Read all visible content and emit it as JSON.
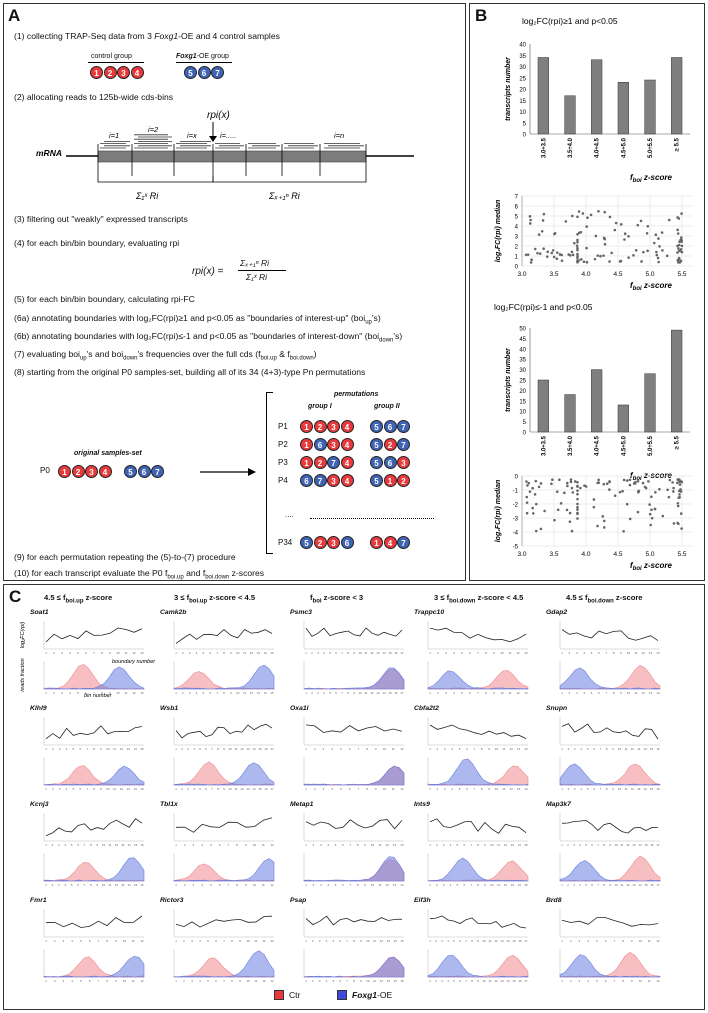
{
  "panel_a": {
    "label": "A",
    "step1": "(1) collecting TRAP-Seq data from 3 ",
    "step1_gene": "Foxg1",
    "step1_rest": "-OE and 4 control samples",
    "control_group": "control group",
    "foxg1_group_gene": "Foxg1",
    "foxg1_group_rest": "-OE group",
    "control_circles": [
      "1",
      "2",
      "3",
      "4"
    ],
    "oe_circles": [
      "5",
      "6",
      "7"
    ],
    "step2": "(2) allocating reads to 125b-wide cds-bins",
    "rpi_x": "rpi(x)",
    "mrna": "mRNA",
    "bin_labels": [
      "i=1",
      "i=2",
      "i=x",
      "i=.....",
      "i=n"
    ],
    "sum_left": "Σ₁ˣ Ri",
    "sum_right": "Σₓ₊₁ⁿ Ri",
    "step3": "(3) filtering out \"weakly\" expressed transcripts",
    "step4": "(4) for each bin/bin boundary, evaluating rpi",
    "formula_lhs": "rpi(x) =",
    "formula_num": "Σₓ₊₁ⁿ Ri",
    "formula_den": "Σ₁ˣ Ri",
    "step5": "(5) for each bin/bin boundary, calculating rpi-FC",
    "step6a": "(6a) annotating boundaries with log₂FC(rpi)≥1 and p<0.05 as \"boundaries of interest-up\" (boi",
    "step6a_sub": "up",
    "step6a_end": "'s)",
    "step6b": "(6b) annotating boundaries with log₂FC(rpi)≤-1 and p<0.05 as \"boundaries of interest-down\" (boi",
    "step6b_sub": "down",
    "step6b_end": "'s)",
    "step7": "(7) evaluating boi",
    "step7_a": "up",
    "step7_b": "'s and boi",
    "step7_c": "down",
    "step7_d": "'s frequencies over the full cds (f",
    "step7_e": "boi.up",
    "step7_f": " & f",
    "step7_g": "boi.down",
    "step7_h": ")",
    "step8": "(8) starting from the original P0 samples-set, building all of its 34 (4+3)-type Pn permutations",
    "permutations": "permutations",
    "group1": "group I",
    "group2": "group II",
    "original": "original samples-set",
    "p0": "P0",
    "perm_rows": [
      {
        "name": "P1",
        "c": [
          [
            "1",
            "r"
          ],
          [
            "2",
            "r"
          ],
          [
            "3",
            "r"
          ],
          [
            "4",
            "r"
          ],
          [
            "5",
            "b"
          ],
          [
            "6",
            "b"
          ],
          [
            "7",
            "b"
          ]
        ]
      },
      {
        "name": "P2",
        "c": [
          [
            "1",
            "r"
          ],
          [
            "6",
            "b"
          ],
          [
            "3",
            "r"
          ],
          [
            "4",
            "r"
          ],
          [
            "5",
            "b"
          ],
          [
            "2",
            "r"
          ],
          [
            "7",
            "b"
          ]
        ]
      },
      {
        "name": "P3",
        "c": [
          [
            "1",
            "r"
          ],
          [
            "2",
            "r"
          ],
          [
            "7",
            "b"
          ],
          [
            "4",
            "r"
          ],
          [
            "5",
            "b"
          ],
          [
            "6",
            "b"
          ],
          [
            "3",
            "r"
          ]
        ]
      },
      {
        "name": "P4",
        "c": [
          [
            "6",
            "b"
          ],
          [
            "7",
            "b"
          ],
          [
            "3",
            "r"
          ],
          [
            "4",
            "r"
          ],
          [
            "5",
            "b"
          ],
          [
            "1",
            "r"
          ],
          [
            "2",
            "r"
          ]
        ]
      },
      {
        "name": "P34",
        "c": [
          [
            "5",
            "b"
          ],
          [
            "2",
            "r"
          ],
          [
            "3",
            "r"
          ],
          [
            "6",
            "b"
          ],
          [
            "1",
            "r"
          ],
          [
            "4",
            "r"
          ],
          [
            "7",
            "b"
          ]
        ]
      }
    ],
    "dots": "....",
    "step9": "(9) for each permutation repeating the (5)-to-(7) procedure",
    "step10": "(10) for each transcript evaluate the P0 f",
    "step10_a": "boi.up",
    "step10_b": " and f",
    "step10_c": "boi.down",
    "step10_d": " z-scores"
  },
  "panel_b": {
    "label": "B",
    "title_up": "log₂FC(rpi)≥1 and p<0.05",
    "title_down": "log₂FC(rpi)≤-1 and p<0.05",
    "ylabel_bar": "transcripts number",
    "xlabel": "f",
    "xlabel_sub": "boi",
    "xlabel_rest": " z-score",
    "ylabel_scatter": "log₂FC(rpi) median",
    "categories": [
      "3.0÷3.5",
      "3.5÷4.0",
      "4.0÷4.5",
      "4.5÷5.0",
      "5.0÷5.5",
      "≥ 5.5"
    ],
    "up_values": [
      34,
      17,
      33,
      23,
      24,
      34
    ],
    "up_ticks": [
      "0",
      "5",
      "10",
      "15",
      "20",
      "25",
      "30",
      "35",
      "40"
    ],
    "down_values": [
      25,
      18,
      30,
      13,
      28,
      49
    ],
    "down_ticks": [
      "0",
      "5",
      "10",
      "15",
      "20",
      "25",
      "30",
      "35",
      "40",
      "45",
      "50"
    ],
    "scatter_x_ticks": [
      "3.0",
      "3.5",
      "4.0",
      "4.5",
      "5.0",
      "5.5"
    ],
    "scatter_up_ticks": [
      "0",
      "1",
      "2",
      "3",
      "4",
      "5",
      "6",
      "7"
    ],
    "scatter_down_ticks": [
      "0",
      "-1",
      "-2",
      "-3",
      "-4",
      "-5"
    ]
  },
  "panel_c": {
    "label": "C",
    "columns": [
      {
        "pre": "4.5 ≤ f",
        "sub": "boi.up",
        "post": " z-score"
      },
      {
        "pre": "3 ≤ f",
        "sub": "boi.up",
        "post": " z-score < 4.5"
      },
      {
        "pre": "f",
        "sub": "boi",
        "post": " z-score < 3"
      },
      {
        "pre": "3 ≤ f",
        "sub": "boi.down",
        "post": " z-score < 4.5"
      },
      {
        "pre": "4.5 ≤ f",
        "sub": "boi.down",
        "post": " z-score"
      }
    ],
    "genes": [
      [
        "Soat1",
        "Camk2b",
        "Psmc3",
        "Trappc10",
        "Gdap2"
      ],
      [
        "Klhl9",
        "Wsb1",
        "Oxa1l",
        "Cbfa2t2",
        "Snupn"
      ],
      [
        "Kcnj3",
        "Tbl1x",
        "Metap1",
        "Ints9",
        "Map3k7"
      ],
      [
        "Fmr1",
        "Rictor3",
        "Psap",
        "Eif3h",
        "Brd8"
      ]
    ],
    "ylabel_fc": "log₂FC(rpi)",
    "ylabel_reads": "reads fraction",
    "boundary_number": "boundary number",
    "bin_number": "bin number",
    "legend_ctr": "Ctr",
    "legend_oe_gene": "Foxg1",
    "legend_oe_rest": "-OE",
    "colors": {
      "ctr": "#f08a8f",
      "oe": "#6a7fe0"
    }
  }
}
